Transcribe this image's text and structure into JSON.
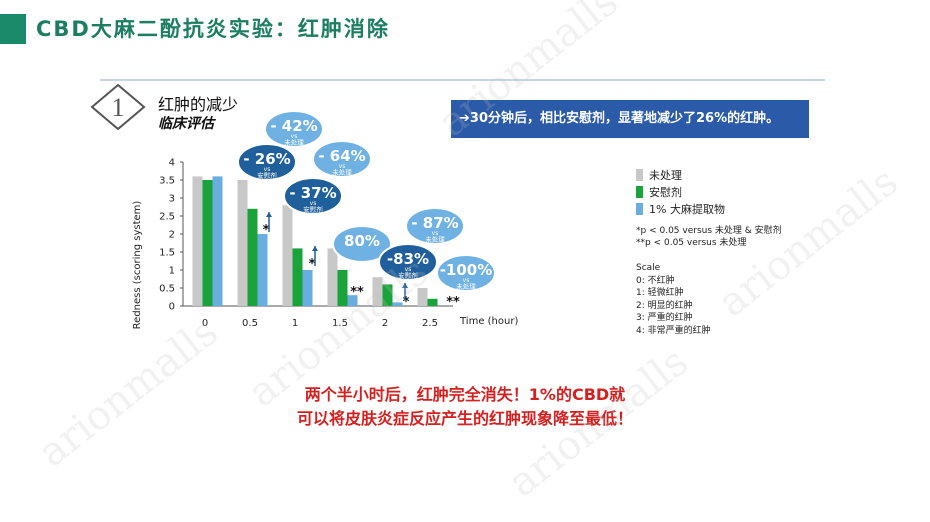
{
  "header": {
    "title": "CBD大麻二酚抗炎实验：红肿消除",
    "accent_color": "#1b8a6b"
  },
  "section": {
    "number": "1",
    "subtitle": "红肿的减少",
    "subtitle2": "临床评估"
  },
  "callout": {
    "text": "➔30分钟后，相比安慰剂，显著地减少了26%的红肿。"
  },
  "chart_data": {
    "type": "bar",
    "categories": [
      "0",
      "0.5",
      "1",
      "1.5",
      "2",
      "2.5"
    ],
    "series": [
      {
        "name": "未处理",
        "color": "#c8c8c8",
        "values": [
          3.6,
          3.5,
          2.8,
          1.6,
          0.8,
          0.5
        ]
      },
      {
        "name": "安慰剂",
        "color": "#1aa33a",
        "values": [
          3.5,
          2.7,
          1.6,
          1.0,
          0.6,
          0.2
        ]
      },
      {
        "name": "1% 大麻提取物",
        "color": "#6aaee0",
        "values": [
          3.6,
          2.0,
          1.0,
          0.3,
          0.1,
          0.0
        ]
      }
    ],
    "yticks": [
      "0",
      "0.5",
      "1",
      "1.5",
      "2",
      "2.5",
      "3",
      "3.5",
      "4"
    ],
    "ylim": [
      0,
      4
    ],
    "xlabel": "Time (hour)",
    "ylabel": "Redness (scoring system)",
    "significance": [
      {
        "category": "0.5",
        "mark": "*"
      },
      {
        "category": "1",
        "mark": "*"
      },
      {
        "category": "1.5",
        "mark": "**"
      },
      {
        "category": "2",
        "mark": "*"
      },
      {
        "category": "2.5",
        "mark": "**"
      }
    ],
    "annotations": [
      {
        "value": "- 42%",
        "vs": "vs",
        "ref": "未处理",
        "style": "light"
      },
      {
        "value": "- 26%",
        "vs": "vs",
        "ref": "安慰剂",
        "style": "dark"
      },
      {
        "value": "- 64%",
        "vs": "vs",
        "ref": "未处理",
        "style": "light"
      },
      {
        "value": "- 37%",
        "vs": "vs",
        "ref": "安慰剂",
        "style": "dark"
      },
      {
        "value": "80%",
        "vs": "",
        "ref": "",
        "style": "light"
      },
      {
        "value": "- 87%",
        "vs": "vs",
        "ref": "未处理",
        "style": "light"
      },
      {
        "value": "-83%",
        "vs": "vs",
        "ref": "安慰剂",
        "style": "dark"
      },
      {
        "value": "-100%",
        "vs": "vs",
        "ref": "未处理",
        "style": "light"
      }
    ]
  },
  "legend": {
    "items": [
      "未处理",
      "安慰剂",
      "1% 大麻提取物"
    ],
    "note1": "*p < 0.05 versus 未处理 & 安慰剂",
    "note2": "**p < 0.05 versus 未处理"
  },
  "scale": {
    "title": "Scale",
    "items": [
      "0: 不红肿",
      "1: 轻微红肿",
      "2: 明显的红肿",
      "3: 严重的红肿",
      "4: 非常严重的红肿"
    ]
  },
  "conclusion": {
    "line1": "两个半小时后，红肿完全消失！1%的CBD就",
    "line2": "可以将皮肤炎症反应产生的红肿现象降至最低！"
  },
  "watermark": "arionmalls"
}
